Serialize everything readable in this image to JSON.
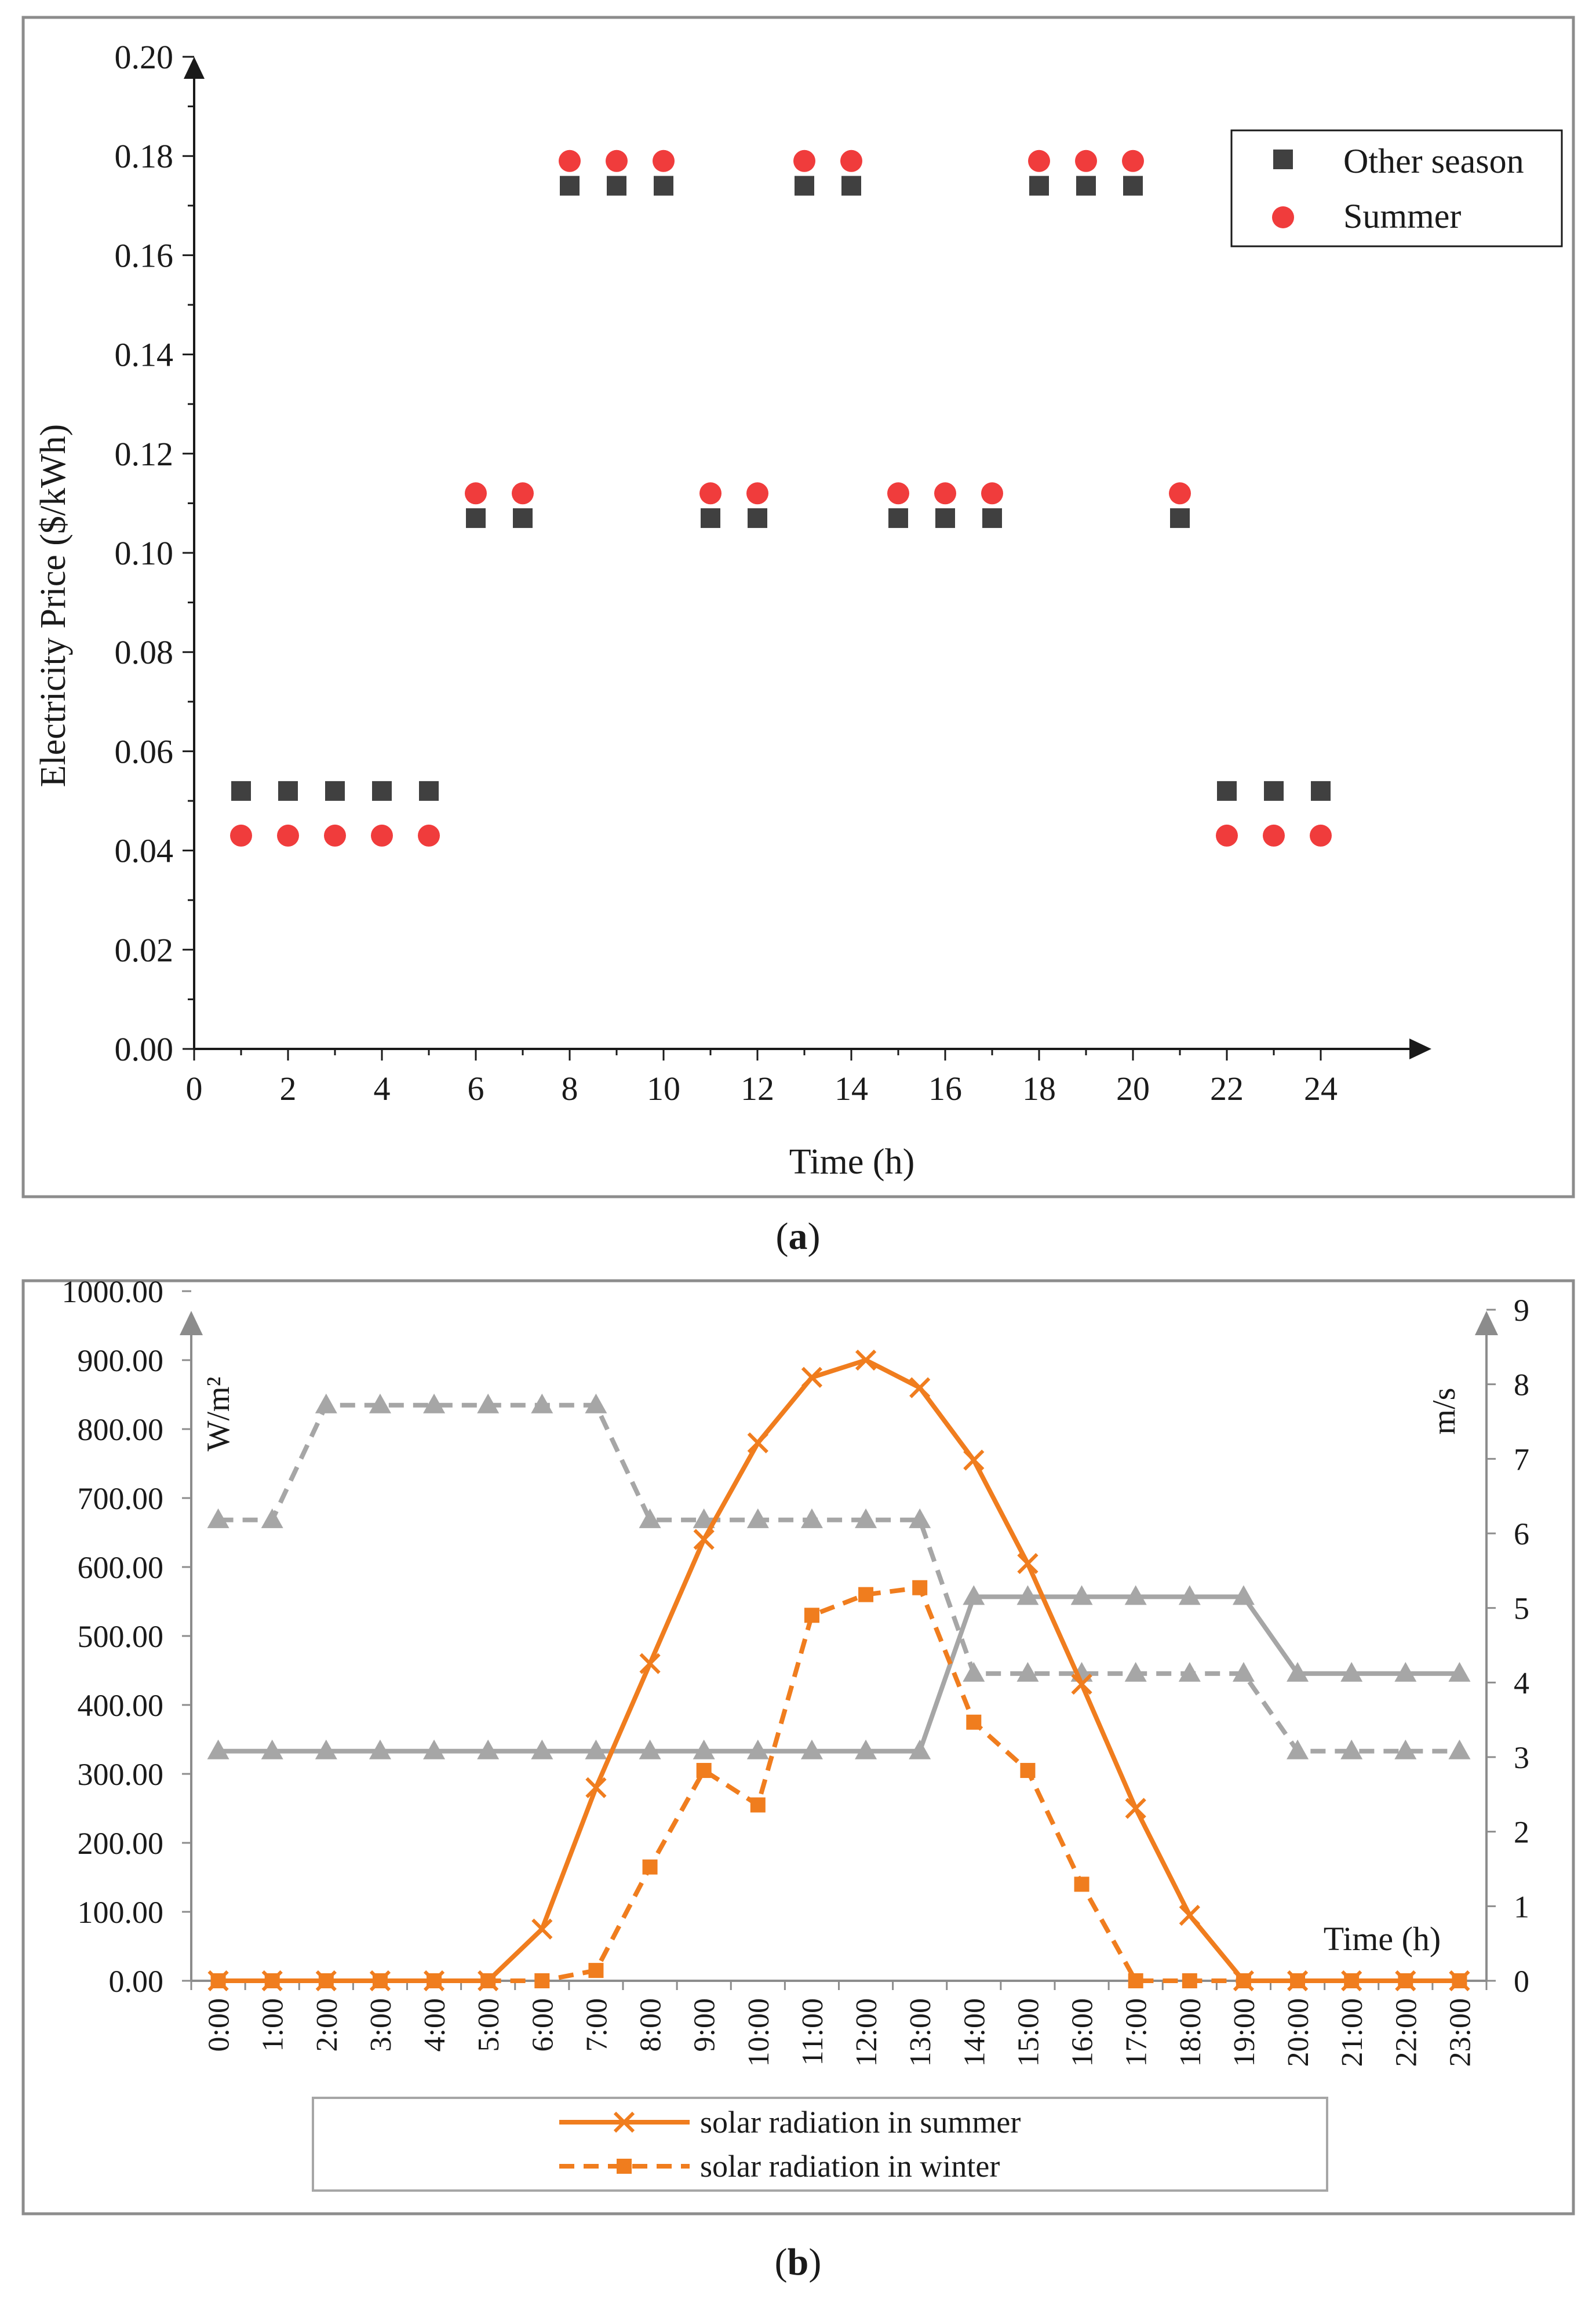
{
  "captions": {
    "a": "a",
    "b": "b"
  },
  "chart_data": [
    {
      "id": "a",
      "type": "scatter",
      "xlabel": "Time (h)",
      "ylabel": "Electricity Price ($/kWh)",
      "xlim": [
        0,
        25
      ],
      "ylim": [
        0,
        0.2
      ],
      "x_ticks": [
        "0",
        "2",
        "4",
        "6",
        "8",
        "10",
        "12",
        "14",
        "16",
        "18",
        "20",
        "22",
        "24"
      ],
      "y_ticks": [
        "0.00",
        "0.02",
        "0.04",
        "0.06",
        "0.08",
        "0.10",
        "0.12",
        "0.14",
        "0.16",
        "0.18",
        "0.20"
      ],
      "legend_position": "top-right",
      "series": [
        {
          "name": "Other season",
          "marker": "square",
          "color": "#404040",
          "x": [
            1,
            2,
            3,
            4,
            5,
            6,
            7,
            8,
            9,
            10,
            11,
            12,
            13,
            14,
            15,
            16,
            17,
            18,
            19,
            20,
            21,
            22,
            23,
            24
          ],
          "values": [
            0.052,
            0.052,
            0.052,
            0.052,
            0.052,
            0.107,
            0.107,
            0.174,
            0.174,
            0.174,
            0.107,
            0.107,
            0.174,
            0.174,
            0.107,
            0.107,
            0.107,
            0.174,
            0.174,
            0.174,
            0.107,
            0.052,
            0.052,
            0.052
          ]
        },
        {
          "name": "Summer",
          "marker": "circle",
          "color": "#f03c3c",
          "x": [
            1,
            2,
            3,
            4,
            5,
            6,
            7,
            8,
            9,
            10,
            11,
            12,
            13,
            14,
            15,
            16,
            17,
            18,
            19,
            20,
            21,
            22,
            23,
            24
          ],
          "values": [
            0.043,
            0.043,
            0.043,
            0.043,
            0.043,
            0.112,
            0.112,
            0.179,
            0.179,
            0.179,
            0.112,
            0.112,
            0.179,
            0.179,
            0.112,
            0.112,
            0.112,
            0.179,
            0.179,
            0.179,
            0.112,
            0.043,
            0.043,
            0.043
          ]
        }
      ]
    },
    {
      "id": "b",
      "type": "line",
      "xlabel": "Time (h)",
      "ylabel_left": "W/m²",
      "ylabel_right": "m/s",
      "ylim_left": [
        0,
        1000
      ],
      "ylim_right": [
        0,
        9
      ],
      "categories": [
        "0:00",
        "1:00",
        "2:00",
        "3:00",
        "4:00",
        "5:00",
        "6:00",
        "7:00",
        "8:00",
        "9:00",
        "10:00",
        "11:00",
        "12:00",
        "13:00",
        "14:00",
        "15:00",
        "16:00",
        "17:00",
        "18:00",
        "19:00",
        "20:00",
        "21:00",
        "22:00",
        "23:00"
      ],
      "y_ticks_left": [
        "0.00",
        "100.00",
        "200.00",
        "300.00",
        "400.00",
        "500.00",
        "600.00",
        "700.00",
        "800.00",
        "900.00",
        "1000.00"
      ],
      "y_ticks_right": [
        "0",
        "1",
        "2",
        "3",
        "4",
        "5",
        "6",
        "7",
        "8",
        "9"
      ],
      "legend_position": "bottom",
      "series": [
        {
          "name": "solar radiation in summer",
          "axis": "left",
          "color": "#f07d1e",
          "dash": "solid",
          "marker": "x",
          "values": [
            0,
            0,
            0,
            0,
            0,
            0,
            75,
            280,
            460,
            640,
            780,
            875,
            900,
            860,
            755,
            605,
            430,
            250,
            95,
            0,
            0,
            0,
            0,
            0
          ]
        },
        {
          "name": "solar radiation in winter",
          "axis": "left",
          "color": "#f07d1e",
          "dash": "dashed",
          "marker": "square",
          "values": [
            0,
            0,
            0,
            0,
            0,
            0,
            0,
            15,
            165,
            305,
            255,
            530,
            560,
            570,
            375,
            305,
            140,
            0,
            0,
            0,
            0,
            0,
            0,
            0
          ]
        },
        {
          "name": "",
          "axis": "right",
          "color": "#a6a6a6",
          "dash": "solid",
          "marker": "triangle",
          "values": [
            3.08,
            3.08,
            3.08,
            3.08,
            3.08,
            3.08,
            3.08,
            3.08,
            3.08,
            3.08,
            3.08,
            3.08,
            3.08,
            3.08,
            5.15,
            5.15,
            5.15,
            5.15,
            5.15,
            5.15,
            4.12,
            4.12,
            4.12,
            4.12
          ]
        },
        {
          "name": "",
          "axis": "right",
          "color": "#a6a6a6",
          "dash": "dashed",
          "marker": "triangle",
          "values": [
            6.18,
            6.18,
            7.72,
            7.72,
            7.72,
            7.72,
            7.72,
            7.72,
            6.18,
            6.18,
            6.18,
            6.18,
            6.18,
            6.18,
            4.12,
            4.12,
            4.12,
            4.12,
            4.12,
            4.12,
            3.08,
            3.08,
            3.08,
            3.08
          ]
        }
      ]
    }
  ]
}
